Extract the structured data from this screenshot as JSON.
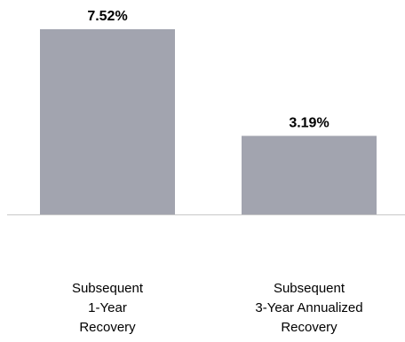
{
  "chart_data": {
    "type": "bar",
    "categories": [
      [
        "Subsequent",
        "1-Year",
        "Recovery"
      ],
      [
        "Subsequent",
        "3-Year Annualized",
        "Recovery"
      ]
    ],
    "values": [
      7.52,
      3.19
    ],
    "value_labels": [
      "7.52%",
      "3.19%"
    ],
    "title": "",
    "xlabel": "",
    "ylabel": "",
    "ylim": [
      0,
      7.52
    ],
    "grid": false,
    "legend": "none",
    "bar_color": "#a2a4af",
    "baseline_color": "#c8c8c8",
    "text_color": "#000000"
  }
}
